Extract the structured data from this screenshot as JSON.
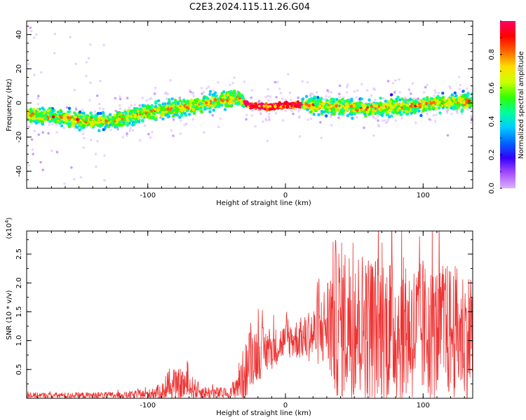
{
  "title": "C2E3.2024.115.11.26.G04",
  "chart_data": [
    {
      "type": "heatmap",
      "title": "C2E3.2024.115.11.26.G04",
      "xlabel": "Height of straight line (km)",
      "ylabel": "Frequency (Hz)",
      "xlim": [
        -188,
        136
      ],
      "ylim": [
        -50,
        48
      ],
      "xticks": [
        "-100",
        "0",
        "100"
      ],
      "xtick_values": [
        -100,
        0,
        100
      ],
      "yticks": [
        "-40",
        "-20",
        "0",
        "20",
        "40"
      ],
      "ytick_values": [
        -40,
        -20,
        0,
        20,
        40
      ],
      "colorbar": {
        "label": "Normalized spectral amplitude",
        "range": [
          0,
          1
        ],
        "ticks": [
          "0.0",
          "0.2",
          "0.4",
          "0.6",
          "0.8"
        ],
        "tick_values": [
          0.0,
          0.2,
          0.4,
          0.6,
          0.8
        ]
      },
      "ridge": {
        "x": [
          -188,
          -170,
          -150,
          -130,
          -110,
          -90,
          -70,
          -50,
          -35,
          -25,
          -10,
          10,
          30,
          60,
          90,
          110,
          136
        ],
        "y": [
          -7,
          -8,
          -10,
          -11,
          -7,
          -4,
          -2,
          1,
          3,
          -2,
          -2,
          -1,
          -2,
          -3,
          -2,
          0,
          1
        ]
      },
      "colors": [
        "#d9b3ff",
        "#a64dff",
        "#3300ff",
        "#0066ff",
        "#00ccff",
        "#00ff99",
        "#33ff00",
        "#ccff00",
        "#ffdd00",
        "#ff6600",
        "#ff0000",
        "#ff0066"
      ]
    },
    {
      "type": "line",
      "xlabel": "Height of straight line (km)",
      "ylabel": "SNR (10 * v/v)",
      "ylabel_scale": "(x10",
      "ylabel_scale_exp": "4",
      "ylabel_scale_close": ")",
      "xlim": [
        -188,
        136
      ],
      "ylim": [
        0,
        2.9
      ],
      "xticks": [
        "-100",
        "0",
        "100"
      ],
      "xtick_values": [
        -100,
        0,
        100
      ],
      "yticks": [
        "0.5",
        "1.0",
        "1.5",
        "2.0",
        "2.5"
      ],
      "ytick_values": [
        0.5,
        1.0,
        1.5,
        2.0,
        2.5
      ],
      "series": [
        {
          "name": "SNR",
          "color": "#ee3333",
          "envelope_x": [
            -188,
            -120,
            -100,
            -90,
            -75,
            -60,
            -40,
            -35,
            -28,
            -25,
            -10,
            0,
            15,
            25,
            30,
            35,
            45,
            60,
            80,
            100,
            120,
            136
          ],
          "envelope_mean": [
            0.05,
            0.05,
            0.07,
            0.12,
            0.25,
            0.1,
            0.08,
            0.25,
            0.5,
            0.75,
            0.85,
            1.0,
            1.05,
            1.15,
            1.3,
            1.4,
            1.3,
            1.25,
            1.2,
            1.15,
            1.15,
            1.1
          ],
          "envelope_spread": [
            0.05,
            0.06,
            0.08,
            0.15,
            0.3,
            0.12,
            0.1,
            0.3,
            0.55,
            0.55,
            0.35,
            0.3,
            0.4,
            0.6,
            0.8,
            1.4,
            1.4,
            1.3,
            1.3,
            1.2,
            1.2,
            1.1
          ]
        }
      ]
    }
  ]
}
